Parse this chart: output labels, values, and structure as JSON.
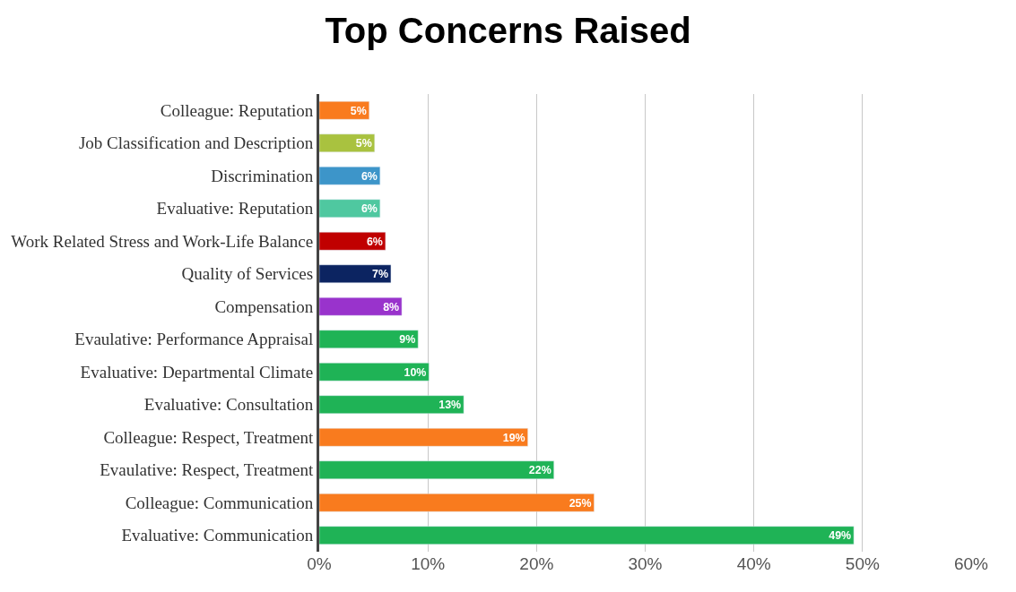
{
  "chart_data": {
    "type": "bar",
    "title": "Top Concerns Raised",
    "orientation": "horizontal",
    "categories": [
      "Colleague: Reputation",
      "Job Classification and Description",
      "Discrimination",
      "Evaluative: Reputation",
      "Work Related Stress and Work-Life Balance",
      "Quality of Services",
      "Compensation",
      "Evaulative: Performance Appraisal",
      "Evaluative: Departmental Climate",
      "Evaluative: Consultation",
      "Colleague: Respect, Treatment",
      "Evaulative: Respect, Treatment",
      "Colleague: Communication",
      "Evaluative: Communication"
    ],
    "values": [
      4.6,
      5.1,
      5.6,
      5.6,
      6.1,
      6.6,
      7.6,
      9.1,
      10.1,
      13.3,
      19.2,
      21.6,
      25.3,
      49.2
    ],
    "value_labels": [
      "5%",
      "5%",
      "6%",
      "6%",
      "6%",
      "7%",
      "8%",
      "9%",
      "10%",
      "13%",
      "19%",
      "22%",
      "25%",
      "49%"
    ],
    "colors": [
      "#f97b1e",
      "#a9c23f",
      "#3d95c9",
      "#4fc8a0",
      "#c00000",
      "#0c2461",
      "#9933cc",
      "#1fb356",
      "#1fb356",
      "#1fb356",
      "#f97b1e",
      "#1fb356",
      "#f97b1e",
      "#1fb356"
    ],
    "xlim": [
      0,
      60
    ],
    "xticks": [
      {
        "value": 0,
        "label": "0%"
      },
      {
        "value": 10,
        "label": "10%"
      },
      {
        "value": 20,
        "label": "20%"
      },
      {
        "value": 30,
        "label": "30%"
      },
      {
        "value": 40,
        "label": "40%"
      },
      {
        "value": 50,
        "label": "50%"
      },
      {
        "value": 60,
        "label": "60%"
      }
    ],
    "grid": "x"
  }
}
